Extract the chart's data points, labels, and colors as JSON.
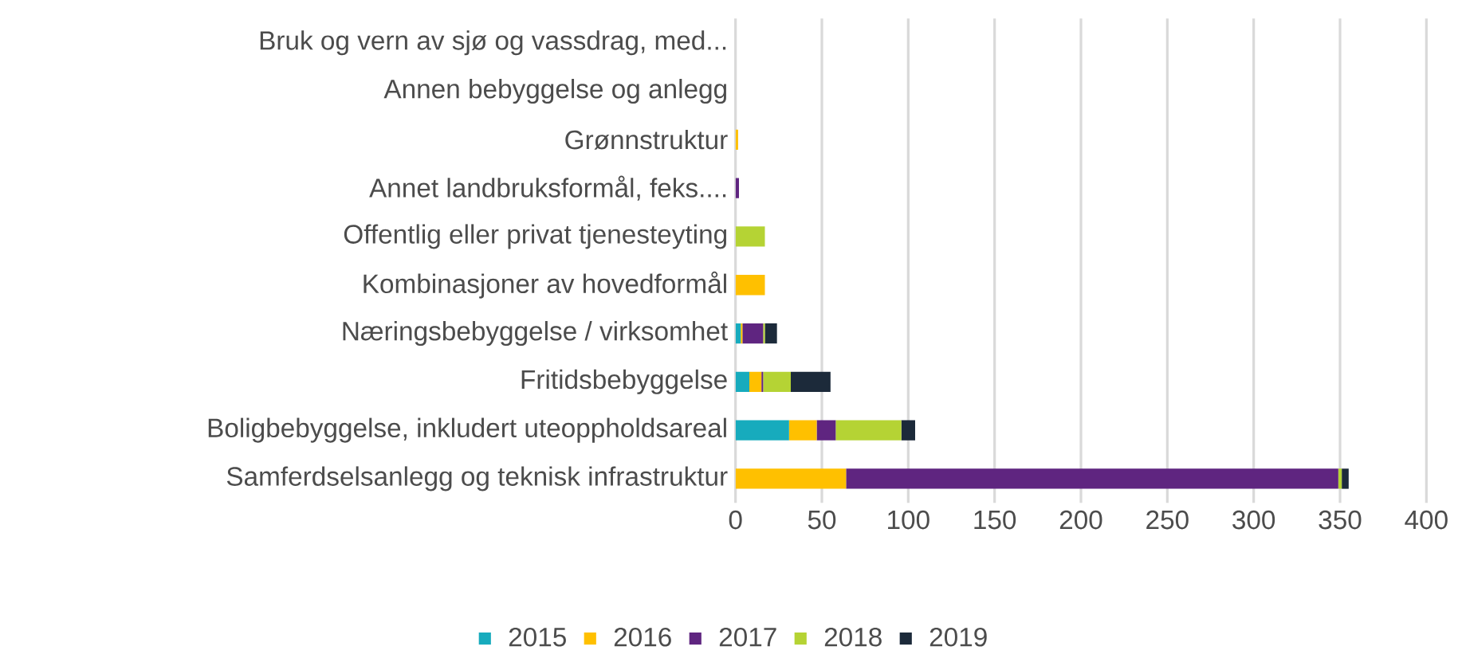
{
  "chart_data": {
    "type": "bar",
    "orientation": "horizontal",
    "stacked": true,
    "categories": [
      "Bruk og vern av sjø og vassdrag, med...",
      "Annen bebyggelse og anlegg",
      "Grønnstruktur",
      "Annet landbruksformål, feks....",
      "Offentlig eller privat tjenesteyting",
      "Kombinasjoner av hovedformål",
      "Næringsbebyggelse / virksomhet",
      "Fritidsbebyggelse",
      "Boligbebyggelse, inkludert uteoppholdsareal",
      "Samferdselsanlegg og teknisk infrastruktur"
    ],
    "series": [
      {
        "name": "2015",
        "color": "#17abbd",
        "values": [
          0,
          0,
          0,
          0,
          0,
          0,
          3,
          8,
          31,
          0
        ]
      },
      {
        "name": "2016",
        "color": "#ffc000",
        "values": [
          0,
          0,
          1.5,
          0,
          0,
          17,
          1,
          7,
          16,
          64
        ]
      },
      {
        "name": "2017",
        "color": "#5f2580",
        "values": [
          0,
          0,
          0,
          2,
          0,
          0,
          12,
          1,
          11,
          285
        ]
      },
      {
        "name": "2018",
        "color": "#b5d334",
        "values": [
          0,
          0,
          0,
          0,
          17,
          0,
          1,
          16,
          38,
          2
        ]
      },
      {
        "name": "2019",
        "color": "#1c2a3a",
        "values": [
          0,
          0,
          0,
          0,
          0,
          0,
          7,
          23,
          8,
          4
        ]
      }
    ],
    "xlim": [
      0,
      400
    ],
    "xticks": [
      0,
      50,
      100,
      150,
      200,
      250,
      300,
      350,
      400
    ],
    "grid": "x",
    "legend": "bottom"
  }
}
